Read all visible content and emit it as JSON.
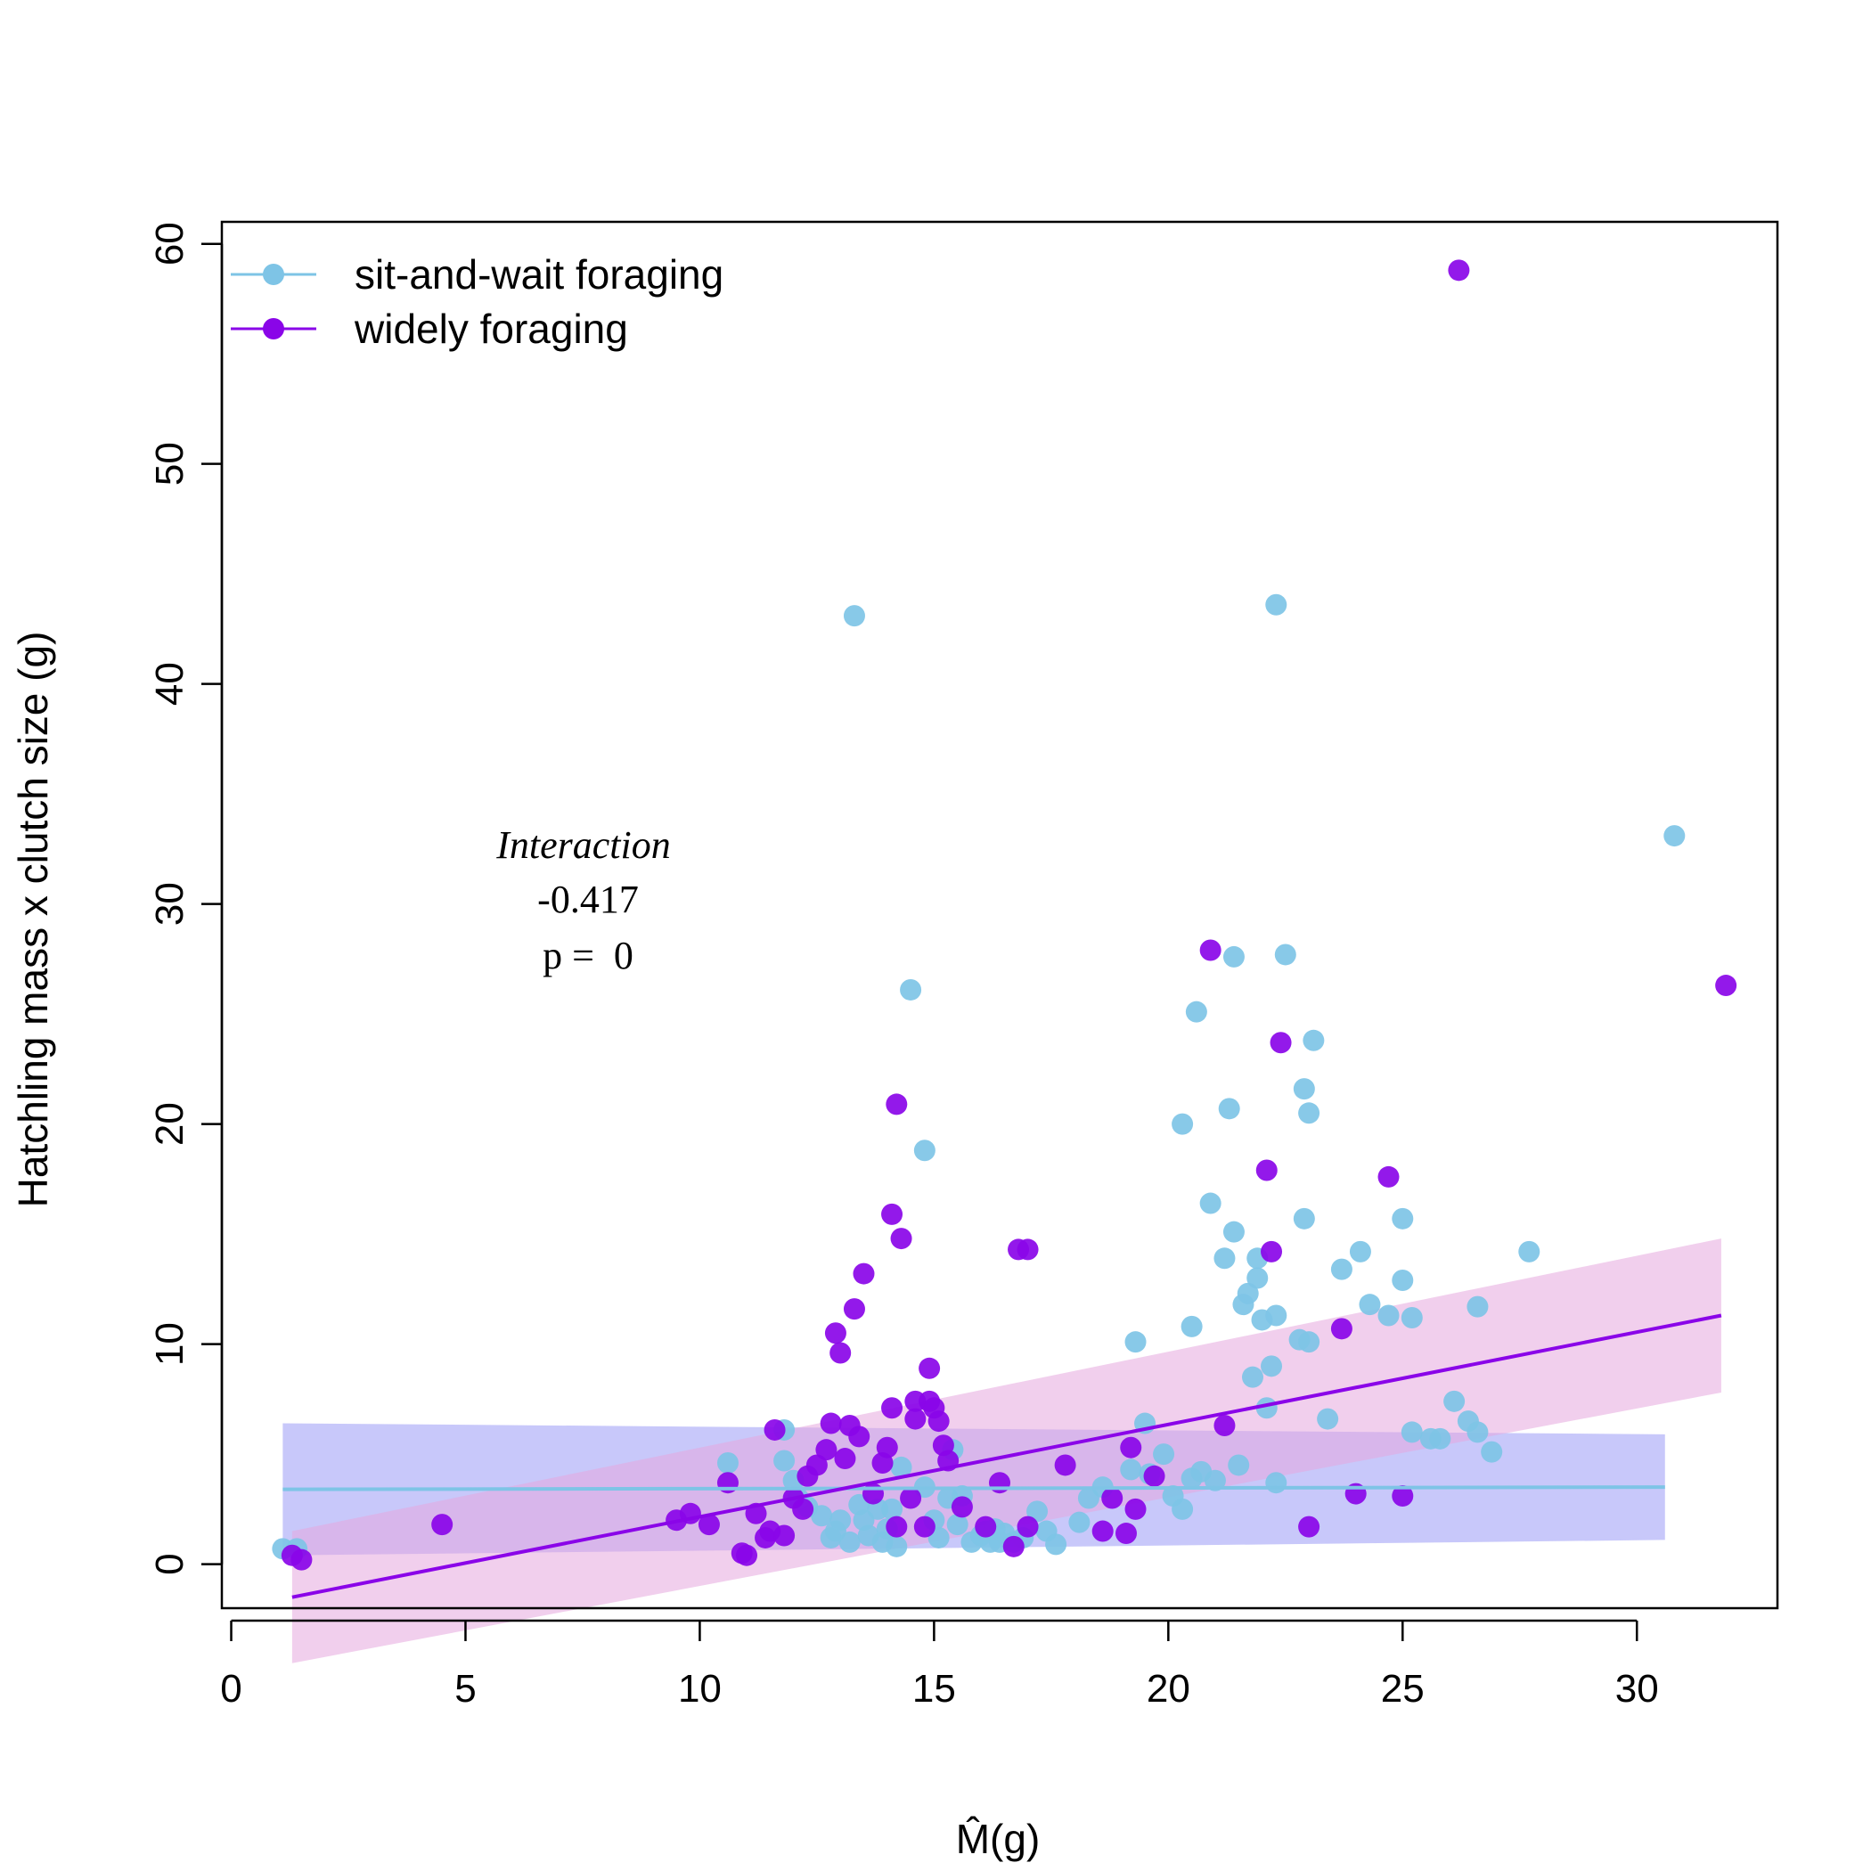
{
  "chart_data": {
    "type": "scatter",
    "xlabel": "M̂(g)",
    "ylabel": "Hatchling mass x clutch size (g)",
    "xlim": [
      -0.2,
      33.0
    ],
    "ylim": [
      -2.0,
      61.0
    ],
    "x_ticks": [
      0,
      5,
      10,
      15,
      20,
      25,
      30
    ],
    "y_ticks": [
      0,
      10,
      20,
      30,
      40,
      50,
      60
    ],
    "grid": false,
    "legend_position": "top-left",
    "annotation": {
      "title": "Interaction",
      "value": "-0.417",
      "p_text": "p =  0"
    },
    "series": [
      {
        "name": "sit-and-wait foraging",
        "color": "#7ec4e6",
        "fit": {
          "x": [
            1.1,
            30.6
          ],
          "y": [
            3.4,
            3.5
          ]
        },
        "band": {
          "color": "#9b9bf5",
          "x": [
            1.1,
            30.6
          ],
          "lower": [
            0.4,
            1.1
          ],
          "upper": [
            6.4,
            5.9
          ]
        },
        "points": [
          [
            1.1,
            0.7
          ],
          [
            1.4,
            0.7
          ],
          [
            10.6,
            4.6
          ],
          [
            11.8,
            6.1
          ],
          [
            11.8,
            4.7
          ],
          [
            12.0,
            3.8
          ],
          [
            12.1,
            3.0
          ],
          [
            12.3,
            2.6
          ],
          [
            12.6,
            2.2
          ],
          [
            12.8,
            1.2
          ],
          [
            12.9,
            1.5
          ],
          [
            13.0,
            2.0
          ],
          [
            13.2,
            1.0
          ],
          [
            13.3,
            43.1
          ],
          [
            13.4,
            2.7
          ],
          [
            13.5,
            2.0
          ],
          [
            13.6,
            1.3
          ],
          [
            13.8,
            2.5
          ],
          [
            13.9,
            1.0
          ],
          [
            14.0,
            1.6
          ],
          [
            14.1,
            2.5
          ],
          [
            14.2,
            0.8
          ],
          [
            14.3,
            4.4
          ],
          [
            14.5,
            26.1
          ],
          [
            14.8,
            18.8
          ],
          [
            14.8,
            3.5
          ],
          [
            15.0,
            2.0
          ],
          [
            15.1,
            1.2
          ],
          [
            15.3,
            3.0
          ],
          [
            15.4,
            5.2
          ],
          [
            15.5,
            1.8
          ],
          [
            15.6,
            3.1
          ],
          [
            15.8,
            1.0
          ],
          [
            16.0,
            1.3
          ],
          [
            16.1,
            1.5
          ],
          [
            16.2,
            1.0
          ],
          [
            16.3,
            1.6
          ],
          [
            16.4,
            1.0
          ],
          [
            16.5,
            1.4
          ],
          [
            16.7,
            1.0
          ],
          [
            16.9,
            1.2
          ],
          [
            17.2,
            2.4
          ],
          [
            17.4,
            1.5
          ],
          [
            17.6,
            0.9
          ],
          [
            18.1,
            1.9
          ],
          [
            18.3,
            3.0
          ],
          [
            18.6,
            3.5
          ],
          [
            19.2,
            4.3
          ],
          [
            19.3,
            10.1
          ],
          [
            19.5,
            6.4
          ],
          [
            19.6,
            4.1
          ],
          [
            19.9,
            5.0
          ],
          [
            20.1,
            3.1
          ],
          [
            20.3,
            20.0
          ],
          [
            20.3,
            2.5
          ],
          [
            20.5,
            3.9
          ],
          [
            20.5,
            10.8
          ],
          [
            20.6,
            25.1
          ],
          [
            20.7,
            4.2
          ],
          [
            20.9,
            16.4
          ],
          [
            21.0,
            3.8
          ],
          [
            21.2,
            13.9
          ],
          [
            21.3,
            20.7
          ],
          [
            21.4,
            27.6
          ],
          [
            21.4,
            15.1
          ],
          [
            21.5,
            4.5
          ],
          [
            21.6,
            11.8
          ],
          [
            21.7,
            12.3
          ],
          [
            21.8,
            8.5
          ],
          [
            21.9,
            13.9
          ],
          [
            21.9,
            13.0
          ],
          [
            22.0,
            11.1
          ],
          [
            22.1,
            7.1
          ],
          [
            22.2,
            9.0
          ],
          [
            22.3,
            11.3
          ],
          [
            22.3,
            43.6
          ],
          [
            22.3,
            3.7
          ],
          [
            22.5,
            27.7
          ],
          [
            22.8,
            10.2
          ],
          [
            22.9,
            21.6
          ],
          [
            22.9,
            15.7
          ],
          [
            23.0,
            20.5
          ],
          [
            23.0,
            10.1
          ],
          [
            23.1,
            23.8
          ],
          [
            23.4,
            6.6
          ],
          [
            23.7,
            13.4
          ],
          [
            24.1,
            14.2
          ],
          [
            24.3,
            11.8
          ],
          [
            24.7,
            11.3
          ],
          [
            25.0,
            12.9
          ],
          [
            25.0,
            15.7
          ],
          [
            25.2,
            6.0
          ],
          [
            25.2,
            11.2
          ],
          [
            25.6,
            5.7
          ],
          [
            25.8,
            5.7
          ],
          [
            26.1,
            7.4
          ],
          [
            26.4,
            6.5
          ],
          [
            26.6,
            11.7
          ],
          [
            26.6,
            6.0
          ],
          [
            26.9,
            5.1
          ],
          [
            27.7,
            14.2
          ],
          [
            30.8,
            33.1
          ]
        ]
      },
      {
        "name": "widely foraging",
        "color": "#8a05e8",
        "fit": {
          "x": [
            1.3,
            31.8
          ],
          "y": [
            -1.5,
            11.3
          ]
        },
        "band": {
          "color": "#e6a7de",
          "x": [
            1.3,
            31.8
          ],
          "lower": [
            -4.5,
            7.8
          ],
          "upper": [
            1.5,
            14.8
          ]
        },
        "points": [
          [
            1.3,
            0.4
          ],
          [
            1.5,
            0.2
          ],
          [
            4.5,
            1.8
          ],
          [
            9.5,
            2.0
          ],
          [
            9.8,
            2.3
          ],
          [
            10.2,
            1.8
          ],
          [
            10.6,
            3.7
          ],
          [
            10.9,
            0.5
          ],
          [
            11.0,
            0.4
          ],
          [
            11.2,
            2.3
          ],
          [
            11.4,
            1.2
          ],
          [
            11.5,
            1.5
          ],
          [
            11.6,
            6.1
          ],
          [
            11.8,
            1.3
          ],
          [
            12.0,
            3.0
          ],
          [
            12.2,
            2.5
          ],
          [
            12.3,
            4.0
          ],
          [
            12.5,
            4.5
          ],
          [
            12.7,
            5.2
          ],
          [
            12.8,
            6.4
          ],
          [
            12.9,
            10.5
          ],
          [
            13.0,
            9.6
          ],
          [
            13.1,
            4.8
          ],
          [
            13.2,
            6.3
          ],
          [
            13.3,
            11.6
          ],
          [
            13.4,
            5.8
          ],
          [
            13.5,
            13.2
          ],
          [
            13.7,
            3.2
          ],
          [
            13.9,
            4.6
          ],
          [
            14.0,
            5.3
          ],
          [
            14.1,
            15.9
          ],
          [
            14.1,
            7.1
          ],
          [
            14.2,
            20.9
          ],
          [
            14.2,
            1.7
          ],
          [
            14.3,
            14.8
          ],
          [
            14.5,
            3.0
          ],
          [
            14.6,
            7.4
          ],
          [
            14.6,
            6.6
          ],
          [
            14.8,
            1.7
          ],
          [
            14.9,
            8.9
          ],
          [
            14.9,
            7.4
          ],
          [
            15.0,
            7.1
          ],
          [
            15.1,
            6.5
          ],
          [
            15.2,
            5.4
          ],
          [
            15.3,
            4.7
          ],
          [
            15.6,
            2.6
          ],
          [
            16.1,
            1.7
          ],
          [
            16.4,
            3.7
          ],
          [
            16.7,
            0.8
          ],
          [
            16.8,
            14.3
          ],
          [
            17.0,
            14.3
          ],
          [
            17.0,
            1.7
          ],
          [
            17.8,
            4.5
          ],
          [
            18.6,
            1.5
          ],
          [
            18.8,
            3.0
          ],
          [
            19.1,
            1.4
          ],
          [
            19.2,
            5.3
          ],
          [
            19.3,
            2.5
          ],
          [
            19.7,
            4.0
          ],
          [
            20.9,
            27.9
          ],
          [
            21.2,
            6.3
          ],
          [
            22.1,
            17.9
          ],
          [
            22.2,
            14.2
          ],
          [
            22.4,
            23.7
          ],
          [
            23.0,
            1.7
          ],
          [
            23.7,
            10.7
          ],
          [
            24.0,
            3.2
          ],
          [
            24.7,
            17.6
          ],
          [
            25.0,
            3.1
          ],
          [
            26.2,
            58.8
          ],
          [
            31.9,
            26.3
          ]
        ]
      }
    ]
  }
}
